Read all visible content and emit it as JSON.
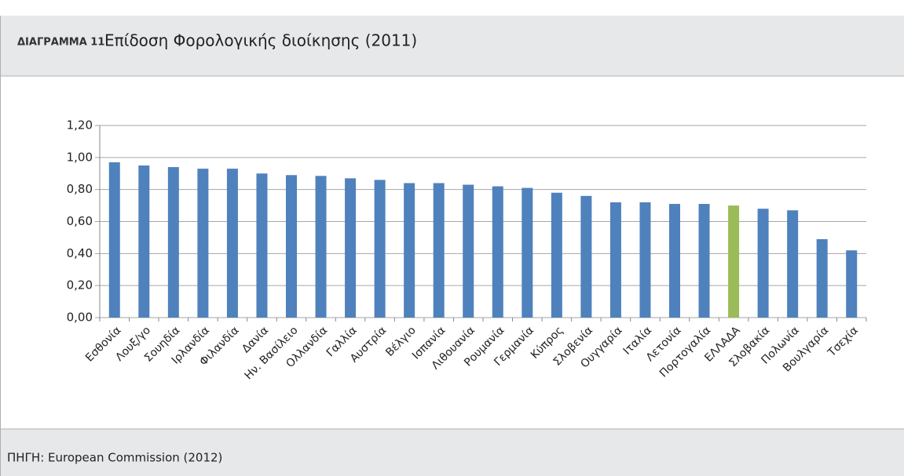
{
  "header": {
    "label": "ΔΙΑΓΡΑΜΜΑ 11",
    "title": "Επίδοση Φορολογικής διοίκησης (2011)"
  },
  "chart_data": {
    "type": "bar",
    "categories": [
      "Εσθονία",
      "Λουξ/γο",
      "Σουηδία",
      "Ιρλανδία",
      "Φιλανδία",
      "Δανία",
      "Ην. Βασίλειο",
      "Ολλανδία",
      "Γαλλία",
      "Αυστρία",
      "Βέλγιο",
      "Ισπανία",
      "Λιθουανία",
      "Ρουμανία",
      "Γερμανία",
      "Κύπρος",
      "Σλοβενία",
      "Ουγγαρία",
      "Ιταλία",
      "Λετονία",
      "Πορτογαλία",
      "ΕΛΛΑΔΑ",
      "Σλοβακία",
      "Πολωνία",
      "Βουλγαρία",
      "Τσεχία"
    ],
    "values": [
      0.97,
      0.95,
      0.94,
      0.93,
      0.93,
      0.9,
      0.89,
      0.885,
      0.87,
      0.86,
      0.84,
      0.84,
      0.83,
      0.82,
      0.81,
      0.78,
      0.76,
      0.72,
      0.72,
      0.71,
      0.71,
      0.7,
      0.68,
      0.67,
      0.49,
      0.42
    ],
    "colors": [
      "#4f81bd",
      "#4f81bd",
      "#4f81bd",
      "#4f81bd",
      "#4f81bd",
      "#4f81bd",
      "#4f81bd",
      "#4f81bd",
      "#4f81bd",
      "#4f81bd",
      "#4f81bd",
      "#4f81bd",
      "#4f81bd",
      "#4f81bd",
      "#4f81bd",
      "#4f81bd",
      "#4f81bd",
      "#4f81bd",
      "#4f81bd",
      "#4f81bd",
      "#4f81bd",
      "#9bbb59",
      "#4f81bd",
      "#4f81bd",
      "#4f81bd",
      "#4f81bd"
    ],
    "ylim": [
      0,
      1.2
    ],
    "yticks": [
      {
        "value": 0,
        "label": "0,00"
      },
      {
        "value": 0.2,
        "label": "0,20"
      },
      {
        "value": 0.4,
        "label": "0,40"
      },
      {
        "value": 0.6,
        "label": "0,60"
      },
      {
        "value": 0.8,
        "label": "0,80"
      },
      {
        "value": 1.0,
        "label": "1,00"
      },
      {
        "value": 1.2,
        "label": "1,20"
      }
    ],
    "grid": true
  },
  "footer": {
    "source": "ΠΗΓΗ: European Commission (2012)"
  }
}
